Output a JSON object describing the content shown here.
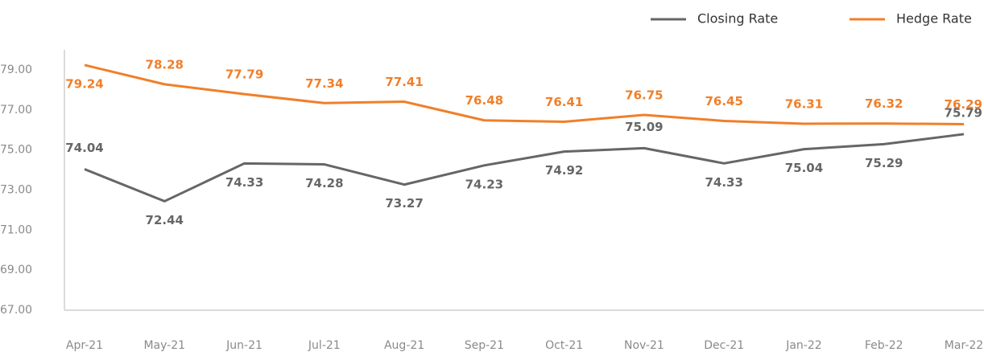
{
  "chart_data": {
    "type": "line",
    "categories": [
      "Apr-21",
      "May-21",
      "Jun-21",
      "Jul-21",
      "Aug-21",
      "Sep-21",
      "Oct-21",
      "Nov-21",
      "Dec-21",
      "Jan-22",
      "Feb-22",
      "Mar-22"
    ],
    "series": [
      {
        "name": "Closing Rate",
        "color": "#666666",
        "values": [
          74.04,
          72.44,
          74.33,
          74.28,
          73.27,
          74.23,
          74.92,
          75.09,
          74.33,
          75.04,
          75.29,
          75.79
        ]
      },
      {
        "name": "Hedge Rate",
        "color": "#f07f2a",
        "values": [
          79.24,
          78.28,
          77.79,
          77.34,
          77.41,
          76.48,
          76.41,
          76.75,
          76.45,
          76.31,
          76.32,
          76.29
        ]
      }
    ],
    "ylim": [
      67,
      80
    ],
    "yticks": [
      {
        "value": 67,
        "label": "67.00"
      },
      {
        "value": 69,
        "label": "69.00"
      },
      {
        "value": 71,
        "label": "71.00"
      },
      {
        "value": 73,
        "label": "73.00"
      },
      {
        "value": 75,
        "label": "75.00"
      },
      {
        "value": 77,
        "label": "77.00"
      },
      {
        "value": 79,
        "label": "79.00"
      }
    ],
    "legend": "top-right"
  }
}
